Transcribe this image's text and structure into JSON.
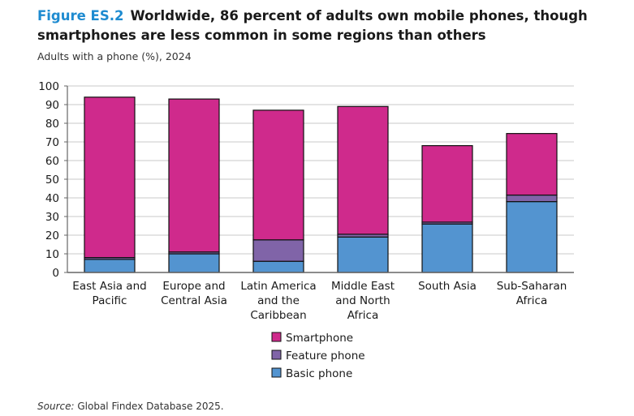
{
  "figure_label": "Figure ES.2",
  "title": "Worldwide, 86 percent of adults own mobile phones, though smartphones are less common in some regions than others",
  "subtitle": "Adults with a phone (%), 2024",
  "source_label": "Source:",
  "source_text": "Global Findex Database 2025.",
  "colors": {
    "Smartphone": "#cf2a8c",
    "Feature phone": "#8064a8",
    "Basic phone": "#5394d0",
    "title_accent": "#1e8bd0"
  },
  "chart_data": {
    "type": "bar",
    "stacked": true,
    "categories": [
      [
        "East Asia and",
        "Pacific"
      ],
      [
        "Europe and",
        "Central Asia"
      ],
      [
        "Latin America",
        "and the",
        "Caribbean"
      ],
      [
        "Middle East",
        "and North",
        "Africa"
      ],
      [
        "South Asia"
      ],
      [
        "Sub-Saharan",
        "Africa"
      ]
    ],
    "series": [
      {
        "name": "Basic phone",
        "values": [
          7,
          10,
          6,
          19,
          26,
          38
        ]
      },
      {
        "name": "Feature phone",
        "values": [
          1,
          1,
          11.5,
          1.5,
          1,
          3.5
        ]
      },
      {
        "name": "Smartphone",
        "values": [
          86,
          82,
          69.5,
          68.5,
          41,
          33
        ]
      }
    ],
    "ylim": [
      0,
      100
    ],
    "yticks": [
      0,
      10,
      20,
      30,
      40,
      50,
      60,
      70,
      80,
      90,
      100
    ],
    "grid": true,
    "legend_position": "bottom",
    "legend_order": [
      "Smartphone",
      "Feature phone",
      "Basic phone"
    ]
  }
}
